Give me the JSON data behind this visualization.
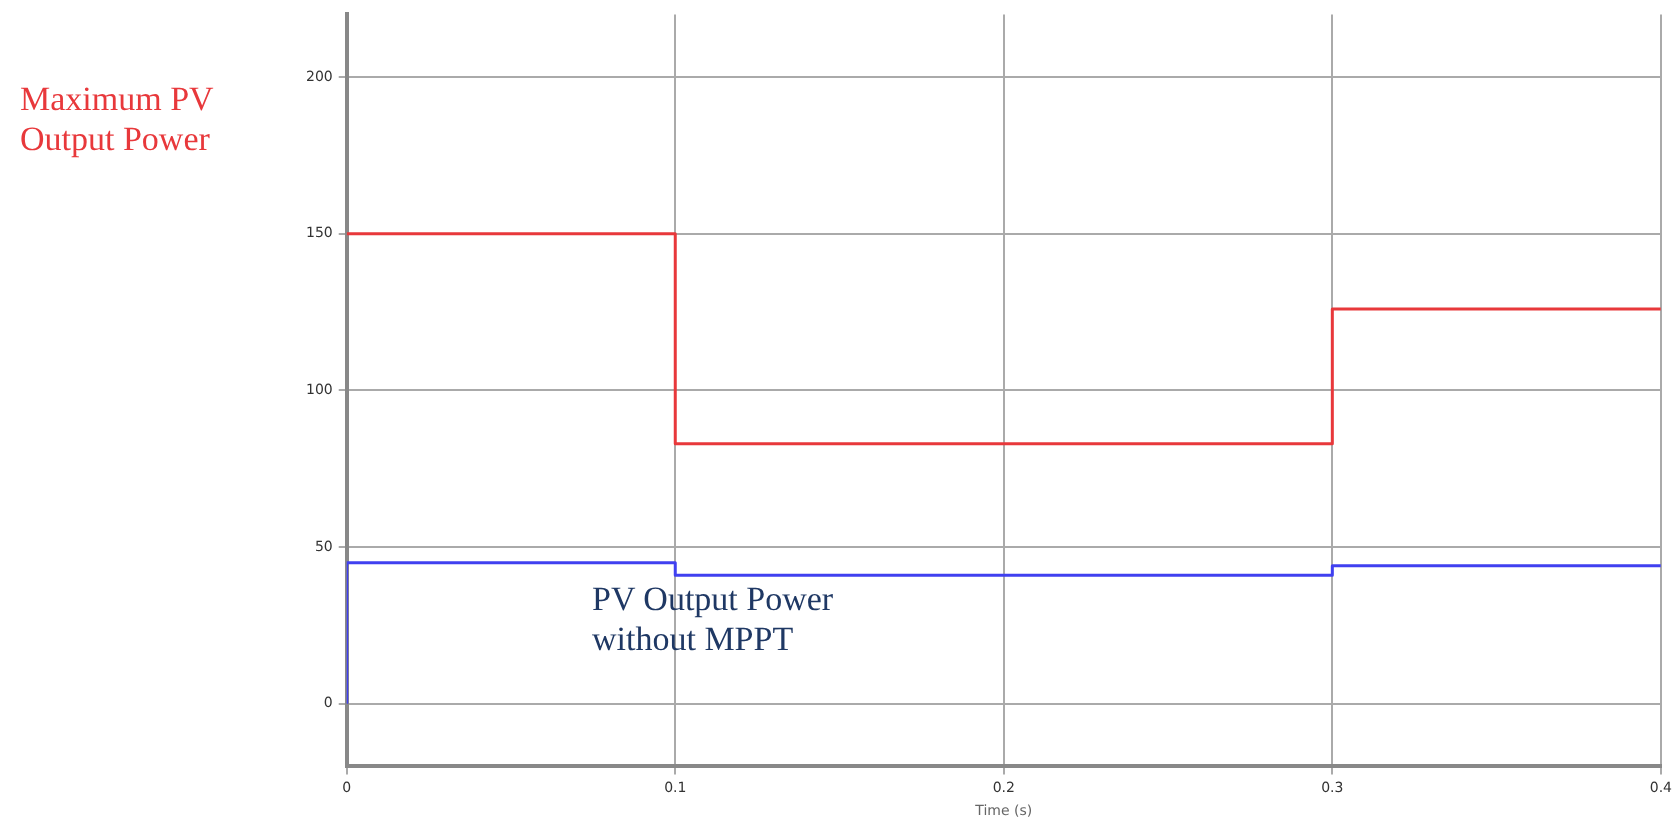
{
  "chart_data": {
    "type": "step",
    "xlabel": "Time (s)",
    "xlim": [
      0,
      0.4
    ],
    "xticks": [
      0,
      0.1,
      0.2,
      0.3,
      0.4
    ],
    "ylim": [
      -20,
      220
    ],
    "yticks": [
      0,
      50,
      100,
      150,
      200
    ],
    "grid": true,
    "legend": false,
    "line_style": "solid",
    "marker": "none",
    "series": [
      {
        "name": "Maximum  PV Output Power",
        "color": "#e8383b",
        "x": [
          0,
          0.1,
          0.3,
          0.4
        ],
        "values": [
          150,
          83,
          126,
          126
        ]
      },
      {
        "name": "PV Output Power without MPPT",
        "color": "#4040f0",
        "x": [
          0,
          0,
          0.1,
          0.3,
          0.4
        ],
        "values": [
          0,
          45,
          41,
          44,
          44
        ]
      }
    ]
  }
}
